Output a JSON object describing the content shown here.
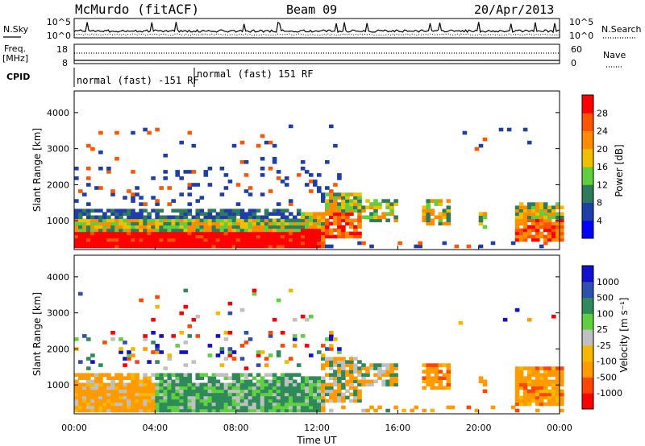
{
  "header": {
    "station": "McMurdo (fitACF)",
    "beam": "Beam 09",
    "date": "20/Apr/2013"
  },
  "summary_panels": {
    "nsky_label": "N.Sky",
    "nsearch_label": "N.Search",
    "nsky_ticks": [
      "10^5",
      "10^0"
    ],
    "nsearch_ticks": [
      "10^5",
      "10^0"
    ],
    "freq_label_line1": "Freq.",
    "freq_label_line2": "[MHz]",
    "freq_ticks": [
      "18",
      "8"
    ],
    "nave_label": "Nave",
    "nave_ticks": [
      "60",
      "0"
    ],
    "cpid_label": "CPID",
    "cpid_segments": [
      {
        "label": "normal (fast) -151 RF",
        "start_h": 0,
        "end_h": 6
      },
      {
        "label": "normal (fast) 151 RF",
        "start_h": 6,
        "end_h": 24
      }
    ]
  },
  "colors": {
    "power_scale": [
      "#0000ff",
      "#1f3fa8",
      "#2f7a5a",
      "#5fcf3f",
      "#f0c000",
      "#ff8c00",
      "#ff5500",
      "#ff0000"
    ],
    "velocity_scale": [
      "#ff0000",
      "#ff4500",
      "#ff9a00",
      "#f5b800",
      "#c0c0c0",
      "#5fd040",
      "#2f8a5a",
      "#3050b0",
      "#1010d0"
    ]
  },
  "chart_data": [
    {
      "type": "heatmap",
      "name": "power-panel",
      "ylabel": "Slant Range [km]",
      "ylim": [
        200,
        4600
      ],
      "yticks": [
        1000,
        2000,
        3000,
        4000
      ],
      "xlim": [
        0,
        24
      ],
      "colorbar": {
        "label": "Power [dB]",
        "ticks": [
          "4",
          "8",
          "12",
          "16",
          "20",
          "24",
          "28"
        ]
      }
    },
    {
      "type": "heatmap",
      "name": "velocity-panel",
      "ylabel": "Slant Range [km]",
      "ylim": [
        200,
        4600
      ],
      "yticks": [
        1000,
        2000,
        3000,
        4000
      ],
      "xlim": [
        0,
        24
      ],
      "xlabel": "Time UT",
      "xtick_labels": [
        "00:00",
        "04:00",
        "08:00",
        "12:00",
        "16:00",
        "20:00",
        "00:00"
      ],
      "colorbar": {
        "label": "Velocity [m s⁻¹]",
        "ticks": [
          "-1000",
          "-500",
          "-100",
          "-25",
          "25",
          "100",
          "500",
          "1000"
        ]
      }
    }
  ]
}
